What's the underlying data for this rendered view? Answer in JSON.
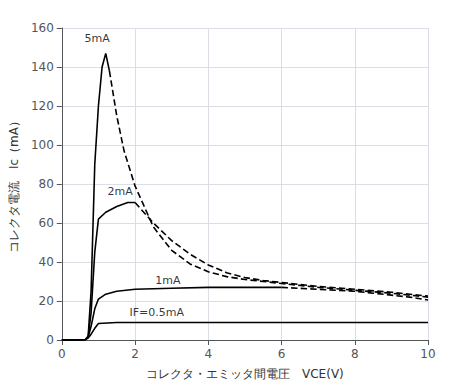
{
  "chart_data": {
    "type": "line",
    "xlabel": "コレクタ・エミッタ間電圧　VCE(V)",
    "ylabel": "コレクタ電流　Ic（mA）",
    "xlim": [
      0,
      10
    ],
    "ylim": [
      0,
      160
    ],
    "xticks": [
      0,
      2,
      4,
      6,
      8,
      10
    ],
    "yticks": [
      0,
      20,
      40,
      60,
      80,
      100,
      120,
      140,
      160
    ],
    "grid": true,
    "color": "#000000",
    "series": [
      {
        "line_style": "solid",
        "x": [
          0.0,
          0.55,
          0.65,
          0.72,
          0.8,
          0.9,
          1.0,
          1.5,
          2.0,
          3.0,
          4.0,
          5.0,
          6.0,
          7.0,
          8.0,
          9.0,
          10.0
        ],
        "values": [
          0.0,
          0.0,
          0.3,
          1.0,
          3.0,
          6.0,
          8.5,
          9.0,
          9.0,
          9.0,
          9.0,
          9.0,
          9.0,
          9.0,
          9.0,
          9.0,
          9.0
        ]
      },
      {
        "line_style": "solid",
        "x": [
          0.0,
          0.55,
          0.65,
          0.72,
          0.8,
          0.9,
          1.0,
          1.2,
          1.5,
          2.0,
          3.0,
          4.0,
          5.0,
          6.0
        ],
        "values": [
          0.0,
          0.0,
          0.3,
          1.5,
          7.0,
          16.0,
          21.0,
          23.5,
          25.0,
          26.0,
          26.5,
          27.0,
          27.0,
          27.0
        ]
      },
      {
        "line_style": "dashed",
        "x": [
          6.0,
          6.5,
          7.0,
          7.5,
          8.0,
          8.5,
          9.0,
          9.5,
          10.0
        ],
        "values": [
          27.0,
          26.5,
          26.0,
          25.5,
          25.0,
          24.0,
          23.0,
          22.0,
          20.5
        ]
      },
      {
        "line_style": "solid",
        "x": [
          0.0,
          0.55,
          0.65,
          0.72,
          0.8,
          0.9,
          1.0,
          1.2,
          1.5,
          1.8,
          2.0
        ],
        "values": [
          0.0,
          0.0,
          0.3,
          1.5,
          14.0,
          45.0,
          62.0,
          65.5,
          68.5,
          70.5,
          70.5
        ]
      },
      {
        "line_style": "dashed",
        "x": [
          2.0,
          2.5,
          3.0,
          3.5,
          4.0,
          4.5,
          5.0,
          5.5,
          6.0,
          6.5,
          7.0,
          8.0,
          9.0,
          10.0
        ],
        "values": [
          70.5,
          60.0,
          51.0,
          44.0,
          38.5,
          34.5,
          32.0,
          30.5,
          29.5,
          28.5,
          27.5,
          26.0,
          24.5,
          22.5
        ]
      },
      {
        "line_style": "solid",
        "x": [
          0.0,
          0.55,
          0.65,
          0.72,
          0.8,
          0.9,
          1.0,
          1.1,
          1.2,
          1.3
        ],
        "values": [
          0.0,
          0.0,
          0.3,
          2.0,
          25.0,
          90.0,
          120.0,
          140.0,
          147.0,
          138.0
        ]
      },
      {
        "line_style": "dashed",
        "x": [
          1.3,
          1.5,
          1.7,
          2.0,
          2.5,
          3.0,
          3.5,
          4.0,
          4.5,
          5.0,
          5.5,
          6.0,
          6.5,
          7.0,
          8.0,
          9.0,
          10.0
        ],
        "values": [
          138.0,
          115.0,
          97.0,
          79.0,
          58.0,
          46.0,
          39.0,
          35.0,
          32.5,
          31.0,
          30.0,
          29.0,
          28.0,
          27.0,
          25.5,
          24.0,
          22.0
        ]
      }
    ],
    "annotations": [
      {
        "text": "5mA",
        "x": 0.62,
        "y": 152.0
      },
      {
        "text": "2mA",
        "x": 1.25,
        "y": 73.5
      },
      {
        "text": "1mA",
        "x": 2.55,
        "y": 27.5
      },
      {
        "text": "IF=0.5mA",
        "x": 1.85,
        "y": 11.5
      }
    ]
  }
}
